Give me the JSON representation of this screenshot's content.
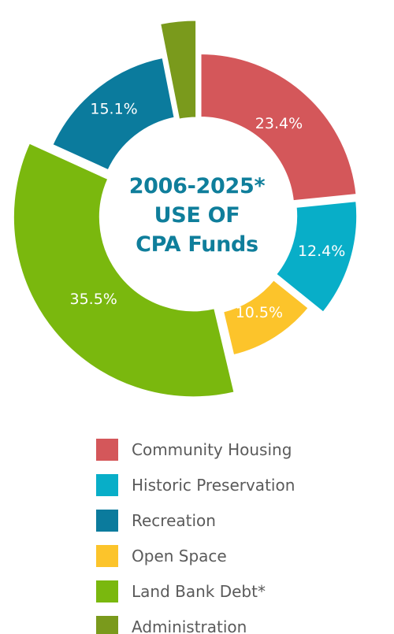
{
  "center_title": [
    "2006-2025*",
    "USE OF",
    "CPA Funds"
  ],
  "chart_data": {
    "type": "pie",
    "title": "2006-2025* USE OF CPA Funds",
    "legend_position": "bottom",
    "slices": [
      {
        "name": "Community Housing",
        "value": 23.4,
        "label": "23.4%",
        "color": "#d4575a"
      },
      {
        "name": "Historic Preservation",
        "value": 12.4,
        "label": "12.4%",
        "color": "#08aec8"
      },
      {
        "name": "Open Space",
        "value": 10.5,
        "label": "10.5%",
        "color": "#fcc42b"
      },
      {
        "name": "Land Bank Debt*",
        "value": 35.5,
        "label": "35.5%",
        "color": "#7ab80e"
      },
      {
        "name": "Recreation",
        "value": 15.1,
        "label": "15.1%",
        "color": "#0b7b9d"
      },
      {
        "name": "Administration",
        "value": 3.1,
        "label": "3.1%",
        "color": "#7a9a1c",
        "label_color": "#7a9a1c"
      }
    ]
  },
  "legend": [
    {
      "label": "Community Housing",
      "color": "#d4575a"
    },
    {
      "label": "Historic Preservation",
      "color": "#08aec8"
    },
    {
      "label": "Recreation",
      "color": "#0b7b9d"
    },
    {
      "label": "Open Space",
      "color": "#fcc42b"
    },
    {
      "label": "Land Bank Debt*",
      "color": "#7ab80e"
    },
    {
      "label": "Administration",
      "color": "#7a9a1c"
    }
  ]
}
